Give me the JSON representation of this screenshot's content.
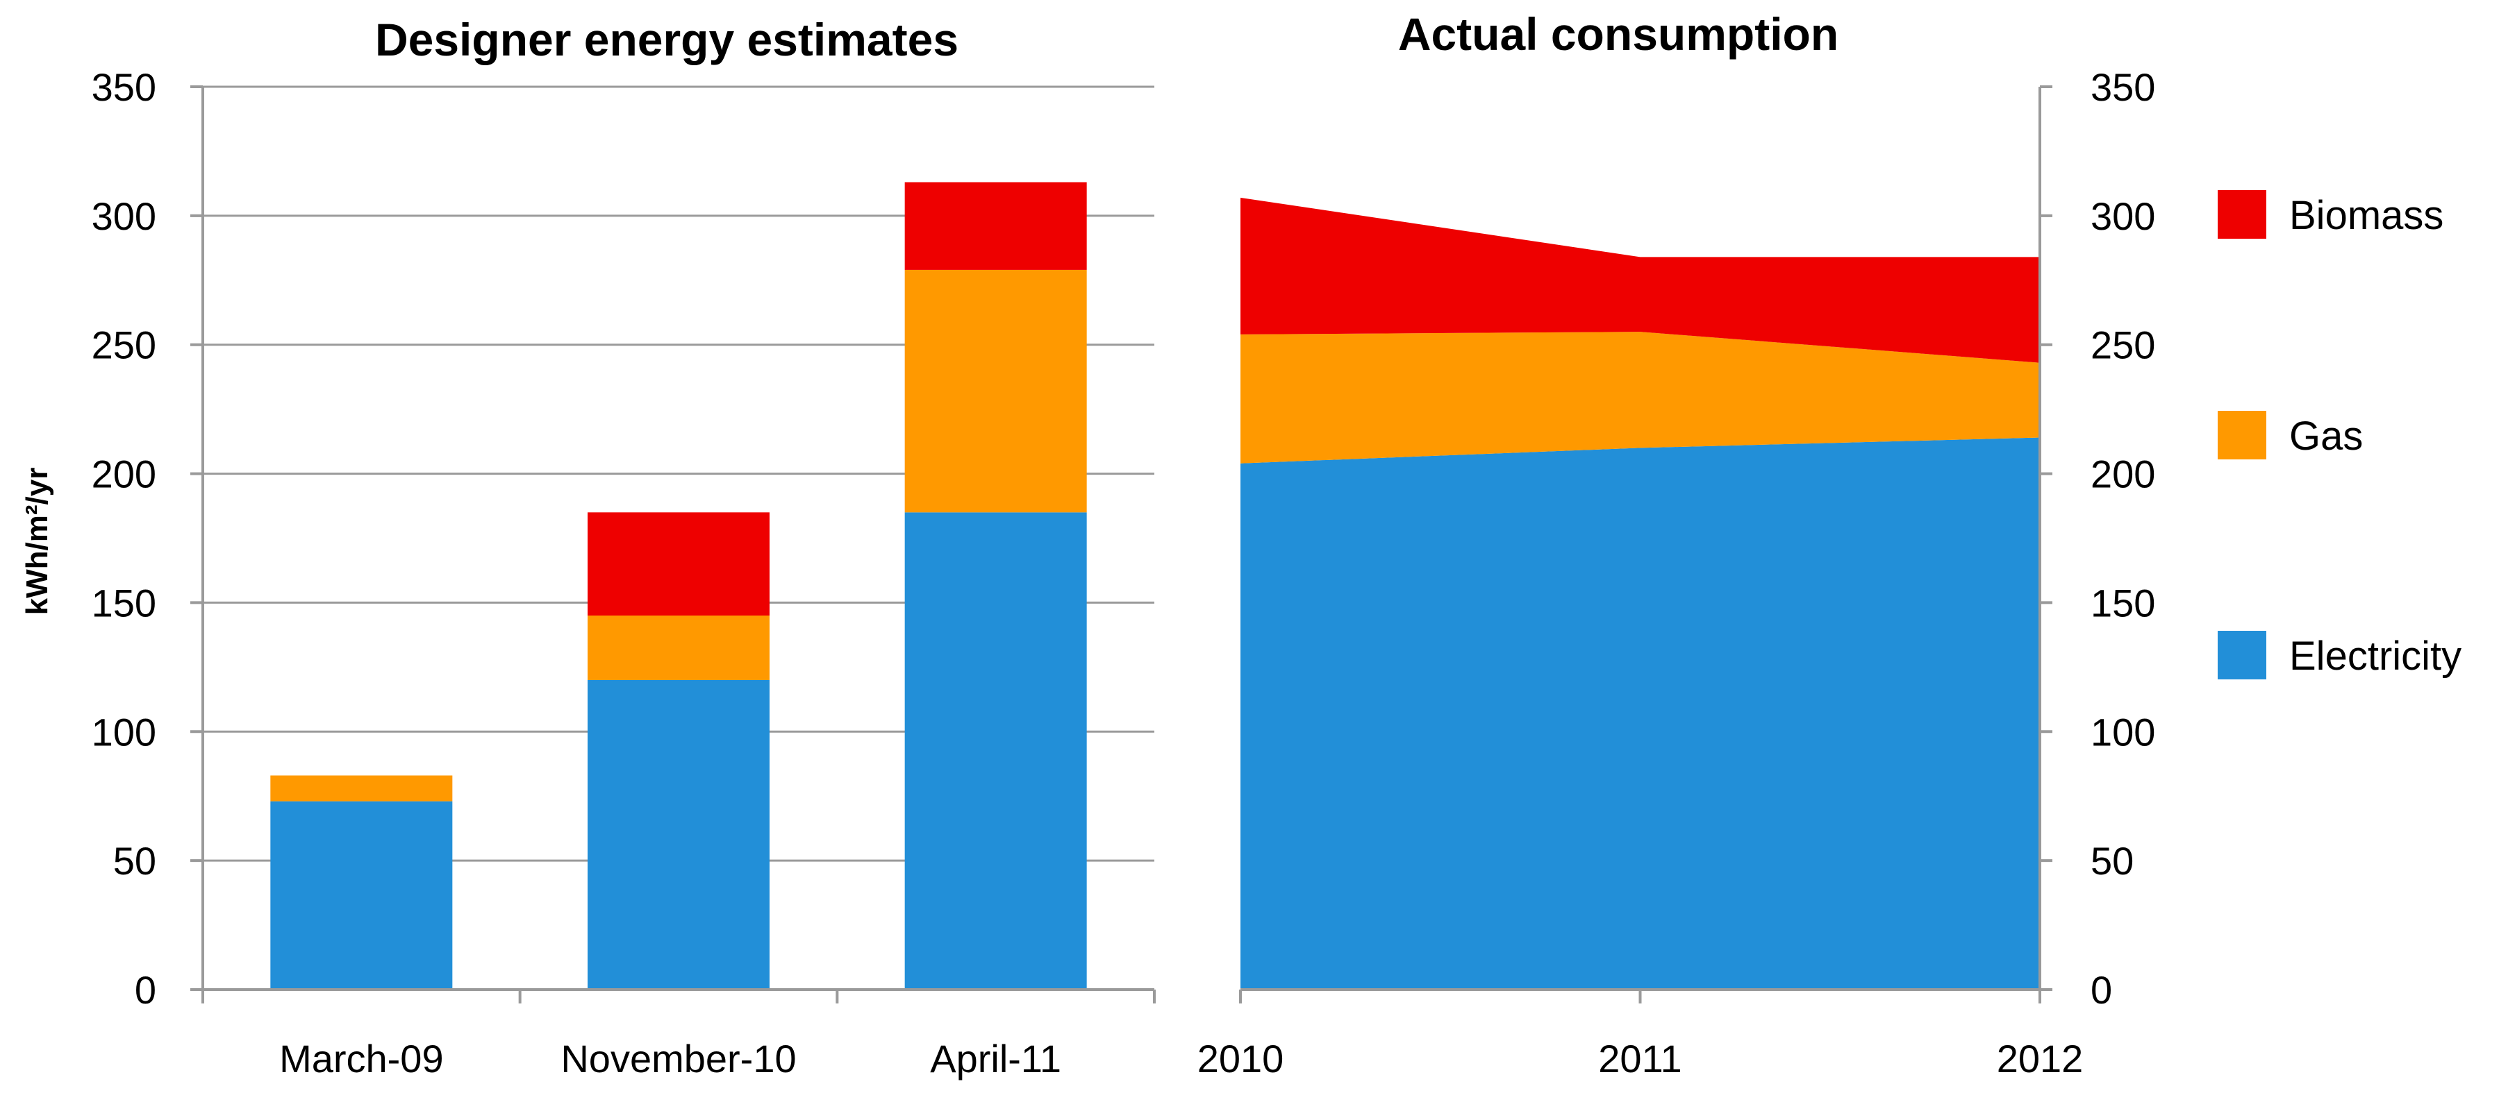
{
  "chart_data": [
    {
      "type": "bar",
      "stacked": true,
      "title": "Designer energy estimates",
      "ylabel": "kWh/m²/yr",
      "ylim": [
        0,
        350
      ],
      "yticks": [
        0,
        50,
        100,
        150,
        200,
        250,
        300,
        350
      ],
      "grid": true,
      "categories": [
        "March-09",
        "November-10",
        "April-11"
      ],
      "series": [
        {
          "name": "Electricity",
          "color": "#228FD8",
          "values": [
            73,
            120,
            185
          ]
        },
        {
          "name": "Gas",
          "color": "#FF9900",
          "values": [
            10,
            25,
            94
          ]
        },
        {
          "name": "Biomass",
          "color": "#EE0000",
          "values": [
            0,
            40,
            34
          ]
        }
      ]
    },
    {
      "type": "area",
      "stacked": true,
      "title": "Actual consumption",
      "ylim": [
        0,
        350
      ],
      "yticks": [
        0,
        50,
        100,
        150,
        200,
        250,
        300,
        350
      ],
      "grid": false,
      "x": [
        "2010",
        "2011",
        "2012"
      ],
      "series": [
        {
          "name": "Electricity",
          "color": "#228FD8",
          "values": [
            204,
            210,
            214
          ]
        },
        {
          "name": "Gas",
          "color": "#FF9900",
          "values": [
            50,
            45,
            29
          ]
        },
        {
          "name": "Biomass",
          "color": "#EE0000",
          "values": [
            53,
            29,
            41
          ]
        }
      ]
    }
  ],
  "legend": {
    "placement": "right",
    "items": [
      {
        "name": "Biomass",
        "color": "#EE0000"
      },
      {
        "name": "Gas",
        "color": "#FF9900"
      },
      {
        "name": "Electricity",
        "color": "#228FD8"
      }
    ]
  }
}
